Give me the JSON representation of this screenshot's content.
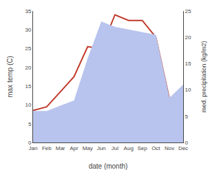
{
  "chart_data": {
    "type": "line",
    "categories": [
      "Jan",
      "Feb",
      "Mar",
      "Apr",
      "May",
      "Jun",
      "Jul",
      "Aug",
      "Sep",
      "Oct",
      "Nov",
      "Dec"
    ],
    "xlabel": "date (month)",
    "ylabel": "max temp (C)",
    "y2label": "med. precipitation (kg/m2)",
    "ylim": [
      0,
      35
    ],
    "yticks": [
      0,
      5,
      10,
      15,
      20,
      25,
      30,
      35
    ],
    "y2lim": [
      0,
      25
    ],
    "y2ticks": [
      0,
      5,
      10,
      15,
      20,
      25
    ],
    "grid": false,
    "series": [
      {
        "type": "area",
        "color": "#b8c4ee",
        "axis": "y2",
        "values": [
          6.0,
          6.0,
          7.0,
          8.0,
          16.0,
          23.0,
          22.0,
          21.5,
          21.0,
          20.5,
          8.5,
          11.0
        ]
      },
      {
        "type": "line",
        "color": "#c0392b",
        "values": [
          8.5,
          9.5,
          13.5,
          17.5,
          25.5,
          25.0,
          34.0,
          32.5,
          32.5,
          28.0,
          11.5,
          11.5
        ]
      }
    ]
  }
}
